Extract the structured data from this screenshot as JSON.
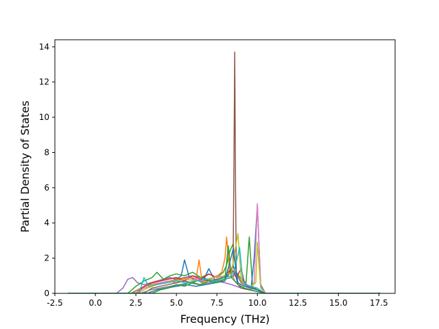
{
  "chart_data": {
    "type": "line",
    "title": "",
    "xlabel": "Frequency (THz)",
    "ylabel": "Partial Density of States",
    "xlim": [
      -2.5,
      18.5
    ],
    "ylim": [
      0,
      14.4
    ],
    "xticks": [
      "-2.5",
      "0.0",
      "2.5",
      "5.0",
      "7.5",
      "10.0",
      "12.5",
      "15.0",
      "17.5"
    ],
    "yticks": [
      "0",
      "2",
      "4",
      "6",
      "8",
      "10",
      "12",
      "14"
    ],
    "xtick_values": [
      -2.5,
      0,
      2.5,
      5,
      7.5,
      10,
      12.5,
      15,
      17.5
    ],
    "ytick_values": [
      0,
      2,
      4,
      6,
      8,
      10,
      12,
      14
    ],
    "grid": false,
    "legend": "none",
    "colors": [
      "#1f77b4",
      "#ff7f0e",
      "#2ca02c",
      "#d62728",
      "#9467bd",
      "#8c564b",
      "#e377c2",
      "#7f7f7f",
      "#bcbd22",
      "#17becf"
    ],
    "series": [
      {
        "color": "#9467bd",
        "x": [
          -1.7,
          1.3,
          1.7,
          2.0,
          2.3,
          2.6,
          3.0,
          3.4,
          3.8,
          4.2,
          4.6,
          5.0,
          5.5,
          6.0,
          6.5,
          7.0,
          7.5,
          8.0,
          8.4,
          8.7,
          9.0,
          9.5,
          10.0,
          10.5,
          17.6
        ],
        "y": [
          0,
          0,
          0.3,
          0.8,
          0.9,
          0.6,
          0.5,
          0.6,
          0.7,
          0.8,
          0.9,
          0.8,
          0.9,
          1.0,
          0.9,
          0.8,
          0.7,
          0.6,
          0.5,
          0.4,
          0.3,
          0.2,
          0.1,
          0,
          0
        ]
      },
      {
        "color": "#2ca02c",
        "x": [
          -1.7,
          2.0,
          2.5,
          3.0,
          3.5,
          3.8,
          4.2,
          4.6,
          5.0,
          5.5,
          6.0,
          6.5,
          7.0,
          7.5,
          7.9,
          8.1,
          8.3,
          8.5,
          8.7,
          9.0,
          9.3,
          9.5,
          9.7,
          10.0,
          10.5,
          17.6
        ],
        "y": [
          0,
          0,
          0.4,
          0.7,
          0.9,
          1.2,
          0.8,
          1.0,
          1.1,
          1.0,
          1.2,
          0.9,
          1.1,
          0.9,
          1.2,
          1.6,
          2.4,
          2.8,
          1.2,
          0.8,
          0.6,
          3.2,
          0.4,
          0.2,
          0,
          0
        ]
      },
      {
        "color": "#1f77b4",
        "x": [
          -1.7,
          2.2,
          2.8,
          3.4,
          4.0,
          4.6,
          5.0,
          5.3,
          5.5,
          5.8,
          6.2,
          6.6,
          7.0,
          7.4,
          7.8,
          8.2,
          8.5,
          8.8,
          9.2,
          9.6,
          9.8,
          10.0,
          10.2,
          10.5,
          17.6
        ],
        "y": [
          0,
          0,
          0.3,
          0.5,
          0.6,
          0.7,
          0.8,
          1.0,
          1.9,
          0.9,
          0.8,
          0.6,
          1.4,
          0.7,
          0.9,
          1.0,
          1.6,
          0.5,
          0.3,
          0.2,
          2.0,
          5.0,
          0.5,
          0,
          0
        ]
      },
      {
        "color": "#ff7f0e",
        "x": [
          -1.7,
          2.3,
          2.8,
          3.4,
          4.0,
          4.6,
          5.2,
          5.8,
          6.2,
          6.4,
          6.6,
          7.0,
          7.4,
          7.8,
          8.0,
          8.1,
          8.3,
          8.6,
          8.9,
          9.2,
          9.6,
          10.0,
          10.5,
          17.6
        ],
        "y": [
          0,
          0,
          0.3,
          0.5,
          0.6,
          0.7,
          0.8,
          0.9,
          0.7,
          1.9,
          0.6,
          0.8,
          0.9,
          1.2,
          2.0,
          3.2,
          1.1,
          1.3,
          0.8,
          0.5,
          0.3,
          0.2,
          0,
          0
        ]
      },
      {
        "color": "#d62728",
        "x": [
          -1.7,
          2.5,
          3.0,
          3.5,
          4.0,
          4.5,
          5.0,
          5.5,
          6.0,
          6.5,
          7.0,
          7.5,
          8.0,
          8.4,
          8.7,
          9.0,
          9.2,
          9.5,
          10.0,
          10.5,
          17.6
        ],
        "y": [
          0,
          0,
          0.4,
          0.6,
          0.7,
          0.8,
          0.9,
          0.7,
          1.0,
          0.8,
          1.1,
          0.9,
          1.0,
          1.4,
          0.9,
          1.4,
          0.6,
          0.4,
          0.2,
          0,
          0
        ]
      },
      {
        "color": "#e377c2",
        "x": [
          -1.7,
          2.5,
          3.0,
          3.5,
          4.0,
          4.5,
          5.0,
          5.5,
          6.0,
          6.5,
          7.0,
          7.5,
          8.0,
          8.3,
          8.6,
          9.0,
          9.5,
          9.8,
          10.0,
          10.2,
          10.5,
          17.6
        ],
        "y": [
          0,
          0,
          0.3,
          0.4,
          0.6,
          0.7,
          0.6,
          0.8,
          0.9,
          0.7,
          0.8,
          1.0,
          0.9,
          1.6,
          0.7,
          0.5,
          0.3,
          0.6,
          5.1,
          0.4,
          0,
          0
        ]
      },
      {
        "color": "#8c564b",
        "x": [
          -1.7,
          3.0,
          3.5,
          4.0,
          4.5,
          5.0,
          5.5,
          6.0,
          6.5,
          7.0,
          7.5,
          8.0,
          8.3,
          8.5,
          8.55,
          8.6,
          8.65,
          8.7,
          8.8,
          9.0,
          9.5,
          10.0,
          10.5,
          17.6
        ],
        "y": [
          0,
          0,
          0.3,
          0.4,
          0.5,
          0.6,
          0.7,
          0.6,
          0.8,
          0.7,
          0.8,
          0.9,
          1.2,
          1.5,
          7.0,
          13.7,
          6.0,
          1.2,
          0.5,
          0.3,
          0.2,
          0.1,
          0,
          0
        ]
      },
      {
        "color": "#7f7f7f",
        "x": [
          -1.7,
          2.8,
          3.4,
          4.0,
          4.6,
          5.2,
          5.8,
          6.4,
          7.0,
          7.6,
          8.0,
          8.4,
          8.7,
          9.0,
          9.4,
          10.0,
          10.5,
          17.6
        ],
        "y": [
          0,
          0,
          0.2,
          0.3,
          0.4,
          0.5,
          0.6,
          0.5,
          0.6,
          0.7,
          0.8,
          0.9,
          1.1,
          0.6,
          0.4,
          0.2,
          0,
          0
        ]
      },
      {
        "color": "#bcbd22",
        "x": [
          -1.7,
          2.6,
          3.2,
          3.8,
          4.4,
          5.0,
          5.6,
          6.2,
          6.8,
          7.4,
          8.0,
          8.4,
          8.8,
          9.0,
          9.3,
          9.6,
          9.9,
          10.0,
          10.2,
          10.5,
          17.6
        ],
        "y": [
          0,
          0,
          0.3,
          0.5,
          0.6,
          0.7,
          0.8,
          0.7,
          0.8,
          0.9,
          1.0,
          1.2,
          3.4,
          0.8,
          0.5,
          0.4,
          0.6,
          2.9,
          0.3,
          0,
          0
        ]
      },
      {
        "color": "#17becf",
        "x": [
          -1.7,
          2.7,
          3.0,
          3.3,
          3.8,
          4.4,
          5.0,
          5.6,
          6.2,
          6.8,
          7.4,
          8.0,
          8.5,
          8.9,
          9.1,
          9.3,
          9.6,
          10.0,
          10.3,
          10.5,
          17.6
        ],
        "y": [
          0,
          0,
          0.9,
          0.4,
          0.5,
          0.6,
          0.7,
          0.6,
          0.7,
          0.8,
          0.7,
          0.9,
          1.0,
          2.6,
          0.7,
          0.5,
          0.4,
          0.3,
          0.1,
          0,
          0
        ]
      },
      {
        "color": "#1f77b4",
        "x": [
          -1.7,
          3.2,
          3.8,
          4.4,
          5.0,
          5.6,
          6.2,
          6.8,
          7.4,
          8.0,
          8.5,
          8.8,
          9.2,
          9.6,
          10.0,
          10.5,
          17.6
        ],
        "y": [
          0,
          0,
          0.2,
          0.3,
          0.4,
          0.5,
          0.4,
          0.5,
          0.6,
          0.7,
          2.5,
          0.6,
          0.4,
          0.3,
          0.2,
          0,
          0
        ]
      },
      {
        "color": "#2ca02c",
        "x": [
          -1.7,
          3.5,
          4.0,
          4.5,
          5.0,
          5.5,
          6.0,
          6.5,
          7.0,
          7.5,
          8.0,
          8.2,
          8.4,
          8.8,
          9.2,
          9.6,
          10.0,
          10.5,
          17.6
        ],
        "y": [
          0,
          0,
          0.2,
          0.3,
          0.5,
          0.4,
          0.6,
          0.5,
          0.7,
          0.6,
          0.8,
          2.7,
          0.9,
          0.5,
          0.3,
          0.2,
          0.1,
          0,
          0
        ]
      }
    ]
  }
}
